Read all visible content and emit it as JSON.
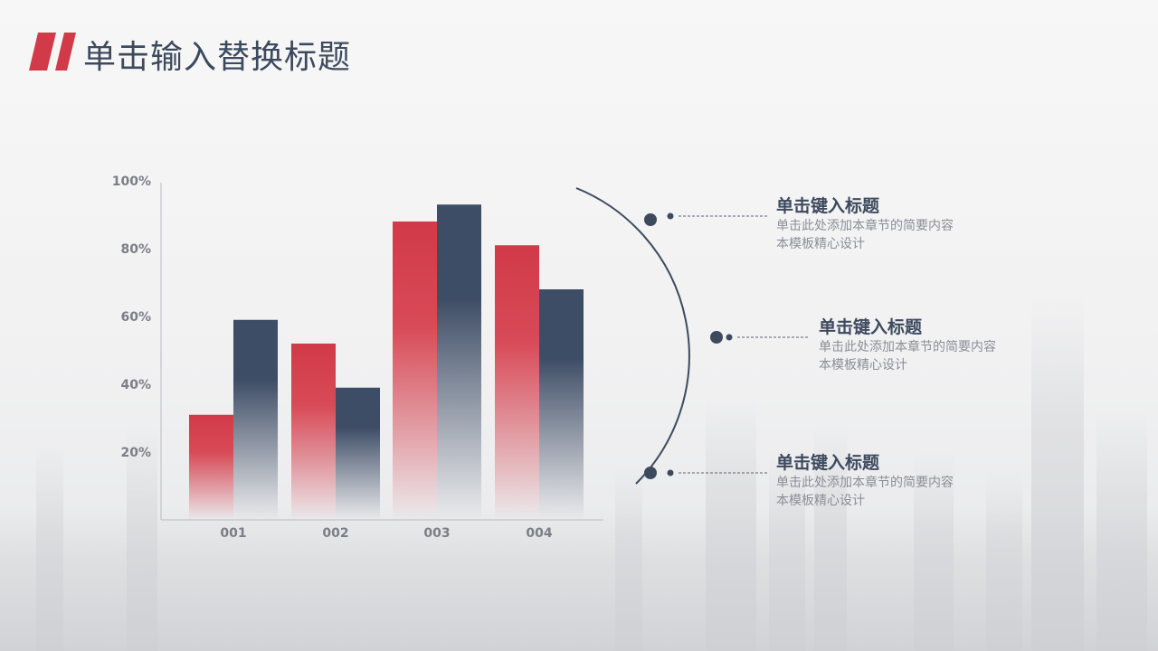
{
  "header": {
    "title": "单击输入替换标题"
  },
  "colors": {
    "red": "#d13a48",
    "navy": "#3e4d66",
    "text_dark": "#3d4a5e",
    "text_gray": "#8a8e96"
  },
  "chart_data": {
    "type": "bar",
    "categories": [
      "001",
      "002",
      "003",
      "004"
    ],
    "series": [
      {
        "values": [
          31,
          52,
          88,
          81
        ]
      },
      {
        "values": [
          59,
          39,
          93,
          68
        ]
      }
    ],
    "ylim": [
      0,
      100
    ],
    "yticks": [
      "20%",
      "40%",
      "60%",
      "80%",
      "100%"
    ],
    "ytick_values": [
      20,
      40,
      60,
      80,
      100
    ],
    "grid": false,
    "legend": "none"
  },
  "items": [
    {
      "title": "单击键入标题",
      "desc1": "单击此处添加本章节的简要内容",
      "desc2": "本模板精心设计"
    },
    {
      "title": "单击键入标题",
      "desc1": "单击此处添加本章节的简要内容",
      "desc2": "本模板精心设计"
    },
    {
      "title": "单击键入标题",
      "desc1": "单击此处添加本章节的简要内容",
      "desc2": "本模板精心设计"
    }
  ]
}
